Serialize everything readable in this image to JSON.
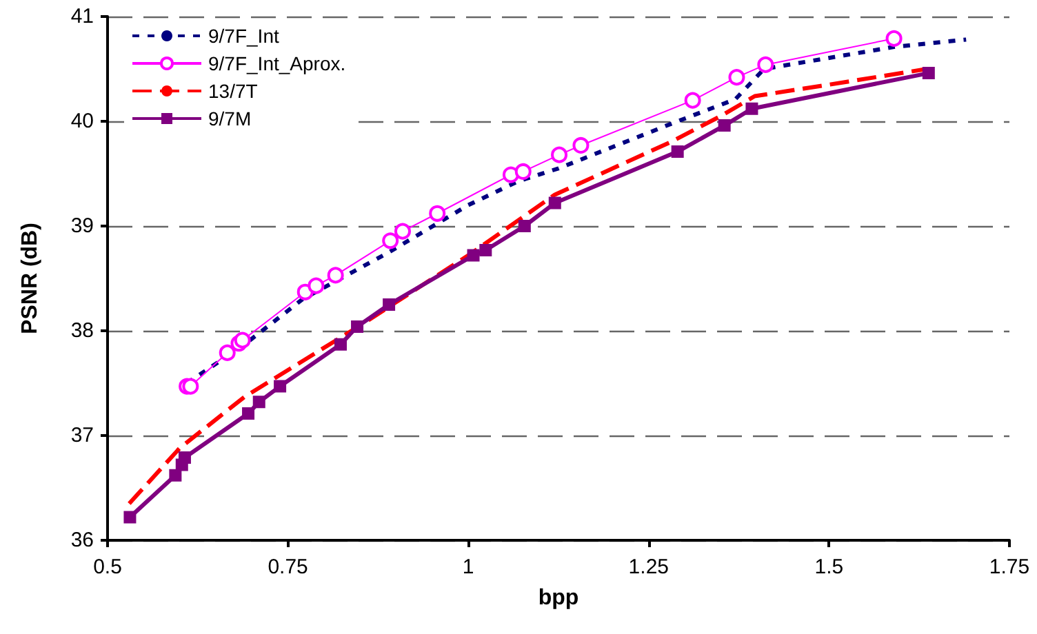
{
  "chart_data": {
    "type": "line",
    "xlabel": "bpp",
    "ylabel": "PSNR (dB)",
    "xlim": [
      0.5,
      1.75
    ],
    "xticks": [
      0.5,
      0.75,
      1,
      1.25,
      1.5,
      1.75
    ],
    "ylim": [
      36,
      41
    ],
    "yticks": [
      36,
      37,
      38,
      39,
      40,
      41
    ],
    "grid": "y",
    "legend": "top left",
    "series": [
      {
        "name": "9/7F_Int",
        "color": "#000080",
        "line_style": "dotted",
        "marker": "none",
        "x": [
          0.61,
          0.69,
          0.77,
          0.89,
          1.0,
          1.07,
          1.125,
          1.29,
          1.37,
          1.41,
          1.59,
          1.69
        ],
        "values": [
          37.5,
          37.87,
          38.3,
          38.75,
          39.2,
          39.43,
          39.55,
          40.0,
          40.21,
          40.5,
          40.71,
          40.78
        ]
      },
      {
        "name": "9/7F_Int_Aprox.",
        "color": "#ff00ff",
        "line_style": "solid",
        "marker": "circle",
        "x": [
          0.61,
          0.615,
          0.666,
          0.682,
          0.687,
          0.774,
          0.789,
          0.816,
          0.892,
          0.909,
          0.957,
          1.059,
          1.076,
          1.126,
          1.156,
          1.311,
          1.372,
          1.412,
          1.59
        ],
        "values": [
          37.47,
          37.47,
          37.79,
          37.88,
          37.91,
          38.37,
          38.43,
          38.53,
          38.86,
          38.95,
          39.12,
          39.49,
          39.52,
          39.68,
          39.77,
          40.2,
          40.42,
          40.54,
          40.79
        ]
      },
      {
        "name": "13/7T",
        "color": "#ff0000",
        "line_style": "dashed",
        "marker": "none",
        "x": [
          0.53,
          0.6,
          0.69,
          0.85,
          1.0,
          1.12,
          1.28,
          1.35,
          1.397,
          1.5,
          1.636
        ],
        "values": [
          36.35,
          36.88,
          37.37,
          38.05,
          38.72,
          39.3,
          39.8,
          40.05,
          40.24,
          40.35,
          40.5
        ]
      },
      {
        "name": "9/7M",
        "color": "#800080",
        "line_style": "solid",
        "marker": "square",
        "x": [
          0.531,
          0.594,
          0.603,
          0.607,
          0.695,
          0.71,
          0.739,
          0.823,
          0.846,
          0.89,
          1.007,
          1.024,
          1.078,
          1.12,
          1.29,
          1.355,
          1.393,
          1.638
        ],
        "values": [
          36.22,
          36.62,
          36.72,
          36.79,
          37.21,
          37.32,
          37.47,
          37.87,
          38.04,
          38.25,
          38.72,
          38.77,
          39.0,
          39.22,
          39.71,
          39.96,
          40.12,
          40.46
        ]
      }
    ]
  }
}
